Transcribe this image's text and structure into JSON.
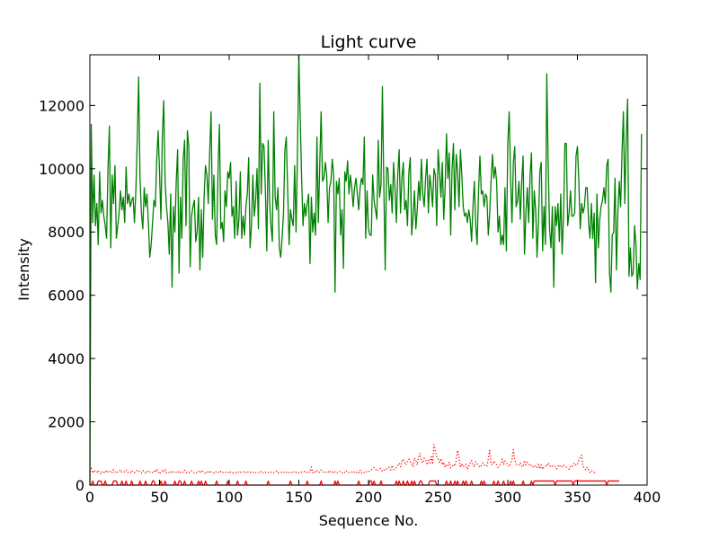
{
  "chart_data": {
    "type": "line",
    "title": "Light curve",
    "xlabel": "Sequence No.",
    "ylabel": "Intensity",
    "xlim": [
      0,
      400
    ],
    "ylim": [
      0,
      13600
    ],
    "xticks": [
      "0",
      "50",
      "100",
      "150",
      "200",
      "250",
      "300",
      "350",
      "400"
    ],
    "yticks": [
      "0",
      "2000",
      "4000",
      "6000",
      "8000",
      "10000",
      "12000"
    ],
    "grid": false,
    "legend": "none",
    "series": [
      {
        "color": "#008000",
        "style": "solid",
        "x_start": 0,
        "x_step": 1,
        "values": [
          0,
          11400,
          8300,
          9800,
          8200,
          8900,
          7600,
          9900,
          8600,
          9000,
          8500,
          8200,
          7800,
          10000,
          11350,
          7500,
          9800,
          8900,
          10100,
          7800,
          8200,
          8600,
          9300,
          8700,
          9100,
          8300,
          10050,
          8900,
          9200,
          8800,
          9000,
          9100,
          8300,
          9300,
          10900,
          12900,
          9700,
          8600,
          8100,
          9400,
          8800,
          9200,
          8300,
          7200,
          7600,
          8300,
          9000,
          8800,
          10300,
          11200,
          9900,
          8400,
          11000,
          12150,
          9600,
          8800,
          8300,
          7300,
          9200,
          6250,
          8800,
          8000,
          9600,
          10600,
          6700,
          9100,
          7800,
          10300,
          10900,
          8200,
          11200,
          10700,
          6900,
          8500,
          8800,
          9000,
          7700,
          8000,
          9100,
          6800,
          8700,
          7200,
          9100,
          10100,
          9800,
          8900,
          10500,
          11800,
          8400,
          9800,
          7900,
          7600,
          10000,
          11400,
          8100,
          8300,
          7700,
          9300,
          8800,
          9900,
          9700,
          10200,
          8500,
          8800,
          7800,
          9600,
          7900,
          8400,
          9900,
          7800,
          8500,
          7900,
          8800,
          9200,
          10350,
          7500,
          8200,
          9800,
          8500,
          9000,
          10000,
          8100,
          12700,
          9200,
          10800,
          10700,
          9300,
          7400,
          10900,
          9000,
          8200,
          7700,
          11800,
          9100,
          8700,
          9400,
          7500,
          7200,
          7800,
          8600,
          10600,
          11000,
          9300,
          7600,
          8700,
          8400,
          8200,
          10100,
          8000,
          10400,
          13600,
          11600,
          9700,
          8200,
          8900,
          8500,
          8900,
          9200,
          7000,
          9100,
          8000,
          8600,
          7900,
          11000,
          8300,
          10100,
          11800,
          9600,
          9700,
          10200,
          9800,
          8300,
          9400,
          9600,
          10300,
          9800,
          6100,
          9600,
          9200,
          9700,
          7900,
          8700,
          6850,
          9900,
          9600,
          10250,
          9200,
          9800,
          9400,
          8800,
          9400,
          9700,
          9200,
          8700,
          9400,
          9700,
          9500,
          11000,
          7800,
          9300,
          8100,
          7900,
          7900,
          9800,
          9000,
          8700,
          8400,
          10900,
          9100,
          9500,
          12600,
          9500,
          6800,
          10050,
          10000,
          9000,
          9500,
          8600,
          10200,
          9400,
          8300,
          9800,
          10600,
          8600,
          9700,
          10200,
          8700,
          9000,
          8200,
          9900,
          10350,
          7900,
          8500,
          9300,
          8100,
          8700,
          9600,
          9000,
          10300,
          9200,
          8800,
          9700,
          10300,
          8600,
          9800,
          9400,
          8800,
          10000,
          9800,
          8200,
          10600,
          9900,
          9100,
          10200,
          8400,
          9400,
          11100,
          9700,
          10500,
          7900,
          10000,
          10800,
          8700,
          10450,
          9900,
          8800,
          10600,
          9800,
          8800,
          8500,
          8600,
          8300,
          8700,
          8400,
          7700,
          8800,
          9600,
          8200,
          7600,
          9300,
          10400,
          9200,
          9300,
          8800,
          9200,
          9100,
          7900,
          8600,
          9600,
          10450,
          9700,
          10050,
          9600,
          8000,
          8500,
          7600,
          7900,
          7600,
          9400,
          7400,
          10800,
          11800,
          9700,
          8300,
          10200,
          10700,
          8800,
          9000,
          9600,
          8400,
          9600,
          10400,
          7300,
          8600,
          9400,
          8300,
          9800,
          10500,
          7800,
          9300,
          8700,
          7200,
          8300,
          9900,
          10200,
          7400,
          8800,
          7600,
          13000,
          10100,
          8100,
          7500,
          8800,
          6250,
          8800,
          8200,
          8900,
          7700,
          9200,
          7300,
          8500,
          10800,
          10800,
          8200,
          8600,
          9300,
          8500,
          8500,
          8600,
          10400,
          10700,
          9600,
          8100,
          8900,
          8600,
          8800,
          9400,
          9400,
          8300,
          7800,
          8900,
          7800,
          8600,
          6400,
          9200,
          7500,
          8400,
          8800,
          9000,
          9400,
          8900,
          10100,
          10300,
          6700,
          6100,
          7900,
          8000,
          9700,
          6800,
          8600,
          9600,
          8800,
          10500,
          11800,
          8900,
          10900,
          12200,
          6600,
          7500,
          6600,
          6700,
          8200,
          7600,
          6200,
          7000,
          6500,
          11100
        ]
      },
      {
        "color": "#ff0000",
        "style": "dotted",
        "x_start": 0,
        "x_step": 1,
        "values": [
          450,
          540,
          380,
          470,
          420,
          400,
          470,
          380,
          350,
          440,
          410,
          380,
          470,
          400,
          420,
          450,
          400,
          490,
          420,
          380,
          410,
          440,
          480,
          400,
          420,
          410,
          470,
          400,
          400,
          380,
          460,
          420,
          390,
          450,
          460,
          470,
          410,
          380,
          460,
          420,
          380,
          440,
          400,
          420,
          380,
          400,
          450,
          400,
          510,
          430,
          350,
          420,
          460,
          410,
          500,
          390,
          420,
          390,
          380,
          450,
          410,
          420,
          400,
          380,
          450,
          380,
          400,
          410,
          470,
          400,
          390,
          380,
          430,
          450,
          400,
          380,
          410,
          380,
          420,
          460,
          390,
          440,
          400,
          360,
          410,
          450,
          380,
          420,
          400,
          380,
          430,
          400,
          420,
          380,
          440,
          400,
          390,
          410,
          400,
          380,
          440,
          410,
          420,
          380,
          400,
          390,
          430,
          380,
          410,
          400,
          420,
          380,
          400,
          440,
          390,
          410,
          380,
          400,
          420,
          390,
          410,
          400,
          380,
          440,
          400,
          370,
          410,
          420,
          400,
          380,
          400,
          420,
          390,
          410,
          440,
          380,
          400,
          390,
          410,
          420,
          380,
          400,
          430,
          390,
          410,
          400,
          380,
          440,
          400,
          420,
          390,
          380,
          410,
          400,
          430,
          380,
          420,
          400,
          410,
          570,
          390,
          440,
          400,
          450,
          390,
          410,
          480,
          420,
          400,
          390,
          430,
          410,
          460,
          400,
          420,
          380,
          420,
          380,
          400,
          440,
          410,
          380,
          420,
          400,
          460,
          400,
          390,
          420,
          410,
          380,
          430,
          400,
          410,
          380,
          470,
          380,
          420,
          400,
          440,
          410,
          420,
          450,
          480,
          520,
          560,
          500,
          450,
          480,
          530,
          520,
          430,
          460,
          520,
          510,
          550,
          560,
          480,
          620,
          490,
          520,
          560,
          620,
          690,
          580,
          760,
          820,
          700,
          640,
          780,
          820,
          740,
          690,
          580,
          860,
          780,
          640,
          900,
          1000,
          760,
          700,
          850,
          820,
          640,
          780,
          700,
          900,
          660,
          1280,
          1080,
          900,
          820,
          720,
          840,
          640,
          720,
          560,
          660,
          620,
          720,
          540,
          580,
          660,
          600,
          780,
          1100,
          880,
          560,
          680,
          580,
          620,
          660,
          500,
          600,
          700,
          780,
          620,
          580,
          740,
          680,
          640,
          560,
          620,
          700,
          660,
          600,
          600,
          820,
          1100,
          660,
          640,
          760,
          700,
          640,
          560,
          600,
          680,
          820,
          660,
          760,
          700,
          640,
          580,
          680,
          820,
          1120,
          800,
          660,
          620,
          640,
          700,
          600,
          580,
          780,
          640,
          720,
          660,
          600,
          640,
          580,
          560,
          620,
          560,
          660,
          520,
          640,
          500,
          560,
          600,
          580,
          700,
          640,
          560,
          600,
          620,
          580,
          520,
          600,
          640,
          560,
          580,
          640,
          600,
          560,
          540,
          500,
          580,
          560,
          640,
          700,
          620,
          660,
          800,
          900,
          940,
          600,
          520,
          480,
          560,
          480,
          400,
          460,
          430,
          400,
          380
        ]
      },
      {
        "color": "#ff0000",
        "style": "solid",
        "x_start": 0,
        "x_step": 1,
        "values": [
          0,
          0,
          130,
          0,
          0,
          0,
          130,
          130,
          130,
          0,
          0,
          130,
          0,
          0,
          0,
          0,
          0,
          130,
          130,
          130,
          0,
          0,
          0,
          130,
          0,
          0,
          130,
          0,
          0,
          0,
          130,
          0,
          0,
          0,
          0,
          0,
          130,
          0,
          0,
          0,
          130,
          0,
          0,
          0,
          0,
          130,
          130,
          0,
          0,
          0,
          0,
          130,
          0,
          0,
          130,
          0,
          0,
          0,
          0,
          0,
          0,
          130,
          0,
          0,
          130,
          130,
          0,
          0,
          130,
          0,
          0,
          0,
          0,
          130,
          0,
          0,
          0,
          0,
          130,
          0,
          130,
          0,
          0,
          130,
          0,
          0,
          0,
          0,
          0,
          0,
          0,
          130,
          0,
          0,
          0,
          0,
          0,
          0,
          0,
          130,
          0,
          0,
          0,
          0,
          0,
          0,
          130,
          0,
          0,
          0,
          0,
          0,
          130,
          0,
          0,
          0,
          0,
          0,
          0,
          0,
          0,
          0,
          0,
          0,
          0,
          0,
          0,
          0,
          130,
          0,
          0,
          0,
          0,
          0,
          0,
          0,
          0,
          0,
          0,
          0,
          0,
          0,
          0,
          0,
          130,
          0,
          0,
          0,
          0,
          0,
          0,
          0,
          0,
          0,
          0,
          0,
          130,
          0,
          0,
          0,
          0,
          0,
          0,
          0,
          0,
          0,
          130,
          0,
          0,
          0,
          0,
          0,
          0,
          0,
          0,
          0,
          130,
          0,
          130,
          0,
          0,
          0,
          0,
          0,
          0,
          0,
          0,
          0,
          0,
          0,
          0,
          0,
          0,
          130,
          0,
          0,
          0,
          0,
          0,
          0,
          0,
          130,
          130,
          0,
          130,
          0,
          0,
          0,
          0,
          130,
          0,
          0,
          0,
          0,
          0,
          0,
          0,
          0,
          0,
          0,
          130,
          0,
          130,
          0,
          0,
          130,
          0,
          0,
          130,
          0,
          0,
          130,
          0,
          130,
          0,
          0,
          0,
          130,
          130,
          0,
          0,
          0,
          0,
          0,
          130,
          130,
          130,
          130,
          130,
          0,
          0,
          0,
          0,
          0,
          0,
          0,
          130,
          0,
          0,
          130,
          0,
          0,
          130,
          0,
          130,
          0,
          0,
          0,
          130,
          0,
          130,
          0,
          0,
          0,
          130,
          0,
          0,
          0,
          0,
          0,
          0,
          130,
          0,
          130,
          0,
          0,
          0,
          0,
          0,
          0,
          130,
          0,
          0,
          130,
          0,
          0,
          0,
          130,
          0,
          0,
          0,
          0,
          130,
          0,
          130,
          0,
          0,
          0,
          0,
          0,
          0,
          130,
          0,
          0,
          0,
          0,
          0,
          130,
          0,
          130,
          130,
          130,
          130,
          130,
          130,
          130,
          130,
          130,
          130,
          130,
          130,
          130,
          130,
          130,
          0,
          130,
          130,
          130,
          130,
          130,
          130,
          130,
          130,
          130,
          130,
          130,
          130,
          0,
          130,
          130,
          130,
          130,
          130,
          130,
          130,
          130,
          130,
          130,
          130,
          130,
          130,
          130,
          130,
          130,
          130,
          130,
          130,
          130,
          130,
          130,
          130,
          0,
          130,
          130,
          130,
          130,
          130,
          130,
          130,
          130,
          130
        ]
      }
    ]
  }
}
